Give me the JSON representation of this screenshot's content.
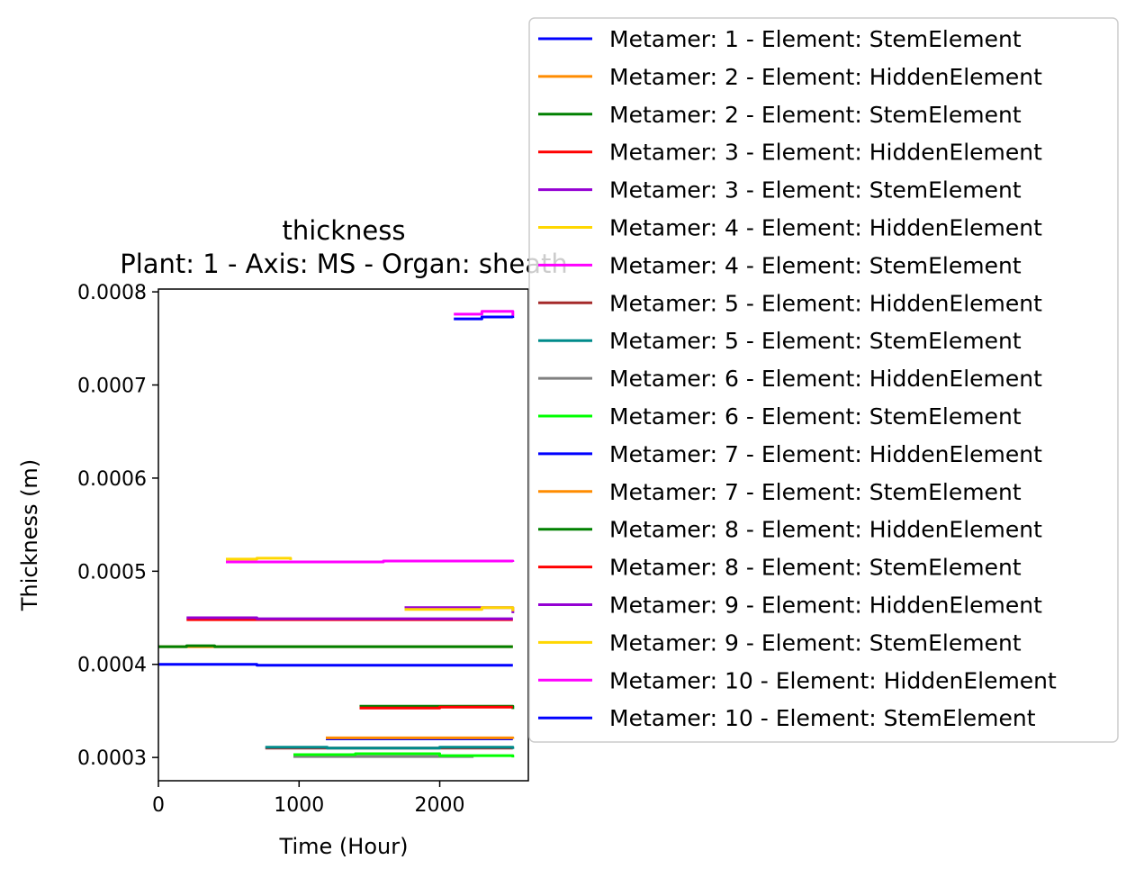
{
  "chart_data": {
    "type": "line",
    "title": "thickness",
    "subtitle": "Plant: 1 - Axis: MS - Organ: sheath",
    "xlabel": "Time (Hour)",
    "ylabel": "Thickness (m)",
    "xlim": [
      0,
      2630
    ],
    "ylim": [
      0.000275,
      0.000803
    ],
    "xticks": [
      0,
      1000,
      2000
    ],
    "xtick_labels": [
      "0",
      "1000",
      "2000"
    ],
    "yticks": [
      0.0003,
      0.0004,
      0.0005,
      0.0006,
      0.0007,
      0.0008
    ],
    "ytick_labels": [
      "0.0003",
      "0.0004",
      "0.0005",
      "0.0006",
      "0.0007",
      "0.0008"
    ],
    "grid": false,
    "legend_position": "outside-right",
    "series": [
      {
        "name": "Metamer: 1 - Element: StemElement",
        "color": "#0000ff",
        "x": [
          0,
          650,
          700,
          2520
        ],
        "y": [
          0.0004,
          0.0004,
          0.000399,
          0.000399
        ]
      },
      {
        "name": "Metamer: 2 - Element: HiddenElement",
        "color": "#ff8c00",
        "x": [
          0,
          2520
        ],
        "y": [
          0.000419,
          0.000419
        ]
      },
      {
        "name": "Metamer: 2 - Element: StemElement",
        "color": "#008000",
        "x": [
          0,
          200,
          400,
          2520
        ],
        "y": [
          0.000419,
          0.00042,
          0.000419,
          0.000419
        ]
      },
      {
        "name": "Metamer: 3 - Element: HiddenElement",
        "color": "#ff0000",
        "x": [
          200,
          2520
        ],
        "y": [
          0.000448,
          0.000448
        ]
      },
      {
        "name": "Metamer: 3 - Element: StemElement",
        "color": "#9400d3",
        "x": [
          200,
          650,
          700,
          1400,
          2520
        ],
        "y": [
          0.00045,
          0.00045,
          0.000449,
          0.000449,
          0.000449
        ]
      },
      {
        "name": "Metamer: 4 - Element: HiddenElement",
        "color": "#ffd700",
        "x": [
          480,
          700,
          940
        ],
        "y": [
          0.000513,
          0.000514,
          0.000512
        ]
      },
      {
        "name": "Metamer: 4 - Element: StemElement",
        "color": "#ff00ff",
        "x": [
          480,
          1000,
          1600,
          2520
        ],
        "y": [
          0.00051,
          0.00051,
          0.000511,
          0.00051
        ]
      },
      {
        "name": "Metamer: 5 - Element: HiddenElement",
        "color": "#a52a2a",
        "x": [
          760,
          2520
        ],
        "y": [
          0.00031,
          0.00031
        ]
      },
      {
        "name": "Metamer: 5 - Element: StemElement",
        "color": "#008b8b",
        "x": [
          760,
          1200,
          2000,
          2520
        ],
        "y": [
          0.000311,
          0.00031,
          0.000311,
          0.000309
        ]
      },
      {
        "name": "Metamer: 6 - Element: HiddenElement",
        "color": "#808080",
        "x": [
          960,
          2240
        ],
        "y": [
          0.000301,
          0.000301
        ]
      },
      {
        "name": "Metamer: 6 - Element: StemElement",
        "color": "#00ff00",
        "x": [
          960,
          1400,
          2000,
          2520
        ],
        "y": [
          0.000303,
          0.000304,
          0.000302,
          0.0003
        ]
      },
      {
        "name": "Metamer: 7 - Element: HiddenElement",
        "color": "#0000ff",
        "x": [
          1190,
          2520
        ],
        "y": [
          0.00032,
          0.00032
        ]
      },
      {
        "name": "Metamer: 7 - Element: StemElement",
        "color": "#ff8c00",
        "x": [
          1190,
          1800,
          2520
        ],
        "y": [
          0.000321,
          0.000321,
          0.00032
        ]
      },
      {
        "name": "Metamer: 8 - Element: HiddenElement",
        "color": "#008000",
        "x": [
          1430,
          2000,
          2520
        ],
        "y": [
          0.000355,
          0.000355,
          0.000352
        ]
      },
      {
        "name": "Metamer: 8 - Element: StemElement",
        "color": "#ff0000",
        "x": [
          1430,
          2000,
          2520
        ],
        "y": [
          0.000353,
          0.000354,
          0.000354
        ]
      },
      {
        "name": "Metamer: 9 - Element: HiddenElement",
        "color": "#9400d3",
        "x": [
          1750,
          2300,
          2520
        ],
        "y": [
          0.000461,
          0.000461,
          0.000455
        ]
      },
      {
        "name": "Metamer: 9 - Element: StemElement",
        "color": "#ffd700",
        "x": [
          1750,
          2300,
          2520
        ],
        "y": [
          0.000459,
          0.000461,
          0.000457
        ]
      },
      {
        "name": "Metamer: 10 - Element: HiddenElement",
        "color": "#ff00ff",
        "x": [
          2100,
          2300,
          2520
        ],
        "y": [
          0.000776,
          0.000779,
          0.000774
        ]
      },
      {
        "name": "Metamer: 10 - Element: StemElement",
        "color": "#0000ff",
        "x": [
          2100,
          2300,
          2520
        ],
        "y": [
          0.000771,
          0.000773,
          0.000772
        ]
      }
    ]
  }
}
